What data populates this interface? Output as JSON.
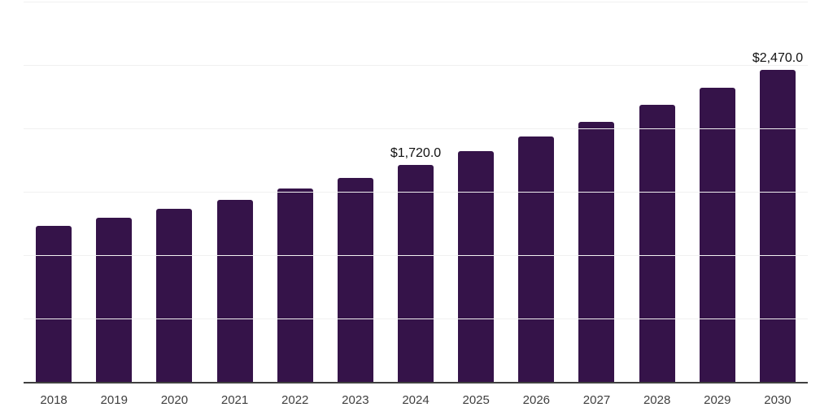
{
  "chart_data": {
    "type": "bar",
    "title": "",
    "xlabel": "",
    "ylabel": "",
    "categories": [
      "2018",
      "2019",
      "2020",
      "2021",
      "2022",
      "2023",
      "2024",
      "2025",
      "2026",
      "2027",
      "2028",
      "2029",
      "2030"
    ],
    "values": [
      1240,
      1300,
      1370,
      1445,
      1530,
      1615,
      1720,
      1825,
      1940,
      2060,
      2190,
      2330,
      2470
    ],
    "data_labels": {
      "2024": "$1,720.0",
      "2030": "$2,470.0"
    },
    "ylim": [
      0,
      3000
    ],
    "gridline_step": 500,
    "grid": "horizontal",
    "legend": "none",
    "y_axis_tick_labels_visible": false
  },
  "colors": {
    "background": "#ffffff",
    "bar_fill": "#351349",
    "gridline": "#f0f0f0",
    "axis_line": "#404040",
    "tick_text": "#3f3f3f",
    "value_label_text": "#111111"
  }
}
